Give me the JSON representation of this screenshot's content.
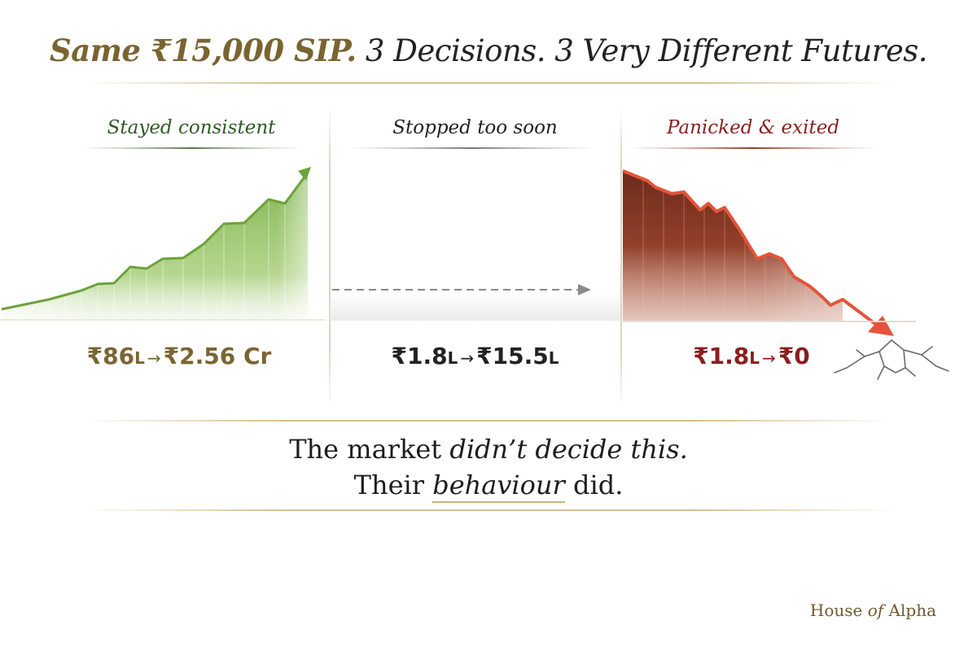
{
  "title": {
    "part1": "Same ₹15,000 SIP.",
    "part2": "3 Decisions. 3 Very Different Futures."
  },
  "columns": [
    {
      "title": "Stayed consistent",
      "amount": {
        "start_value": "₹86",
        "start_unit": "L",
        "arrow": "→",
        "end_value": "₹2.56 Cr",
        "end_unit": ""
      },
      "color": "#2f5a26"
    },
    {
      "title": "Stopped too soon",
      "amount": {
        "start_value": "₹1.8",
        "start_unit": "L",
        "arrow": "→",
        "end_value": "₹15.5",
        "end_unit": "L"
      },
      "color": "#222222"
    },
    {
      "title": "Panicked & exited",
      "amount": {
        "start_value": "₹1.8",
        "start_unit": "L",
        "arrow": "→",
        "end_value": "₹0",
        "end_unit": ""
      },
      "color": "#8b1e1e"
    }
  ],
  "quote": {
    "line1_a": "The market ",
    "line1_b": "didn’t decide this.",
    "line2_a": "Their ",
    "line2_b": "behaviour",
    "line2_c": " did."
  },
  "brand": {
    "a": "House ",
    "b": "of",
    "c": " Alpha"
  },
  "colors": {
    "gold": "#7a6431",
    "green": "#2f5a26",
    "red": "#8b1e1e",
    "growth_fill": "#8fbf5a",
    "decline_fill": "#a4452a",
    "decline_arrow": "#e2553a"
  }
}
